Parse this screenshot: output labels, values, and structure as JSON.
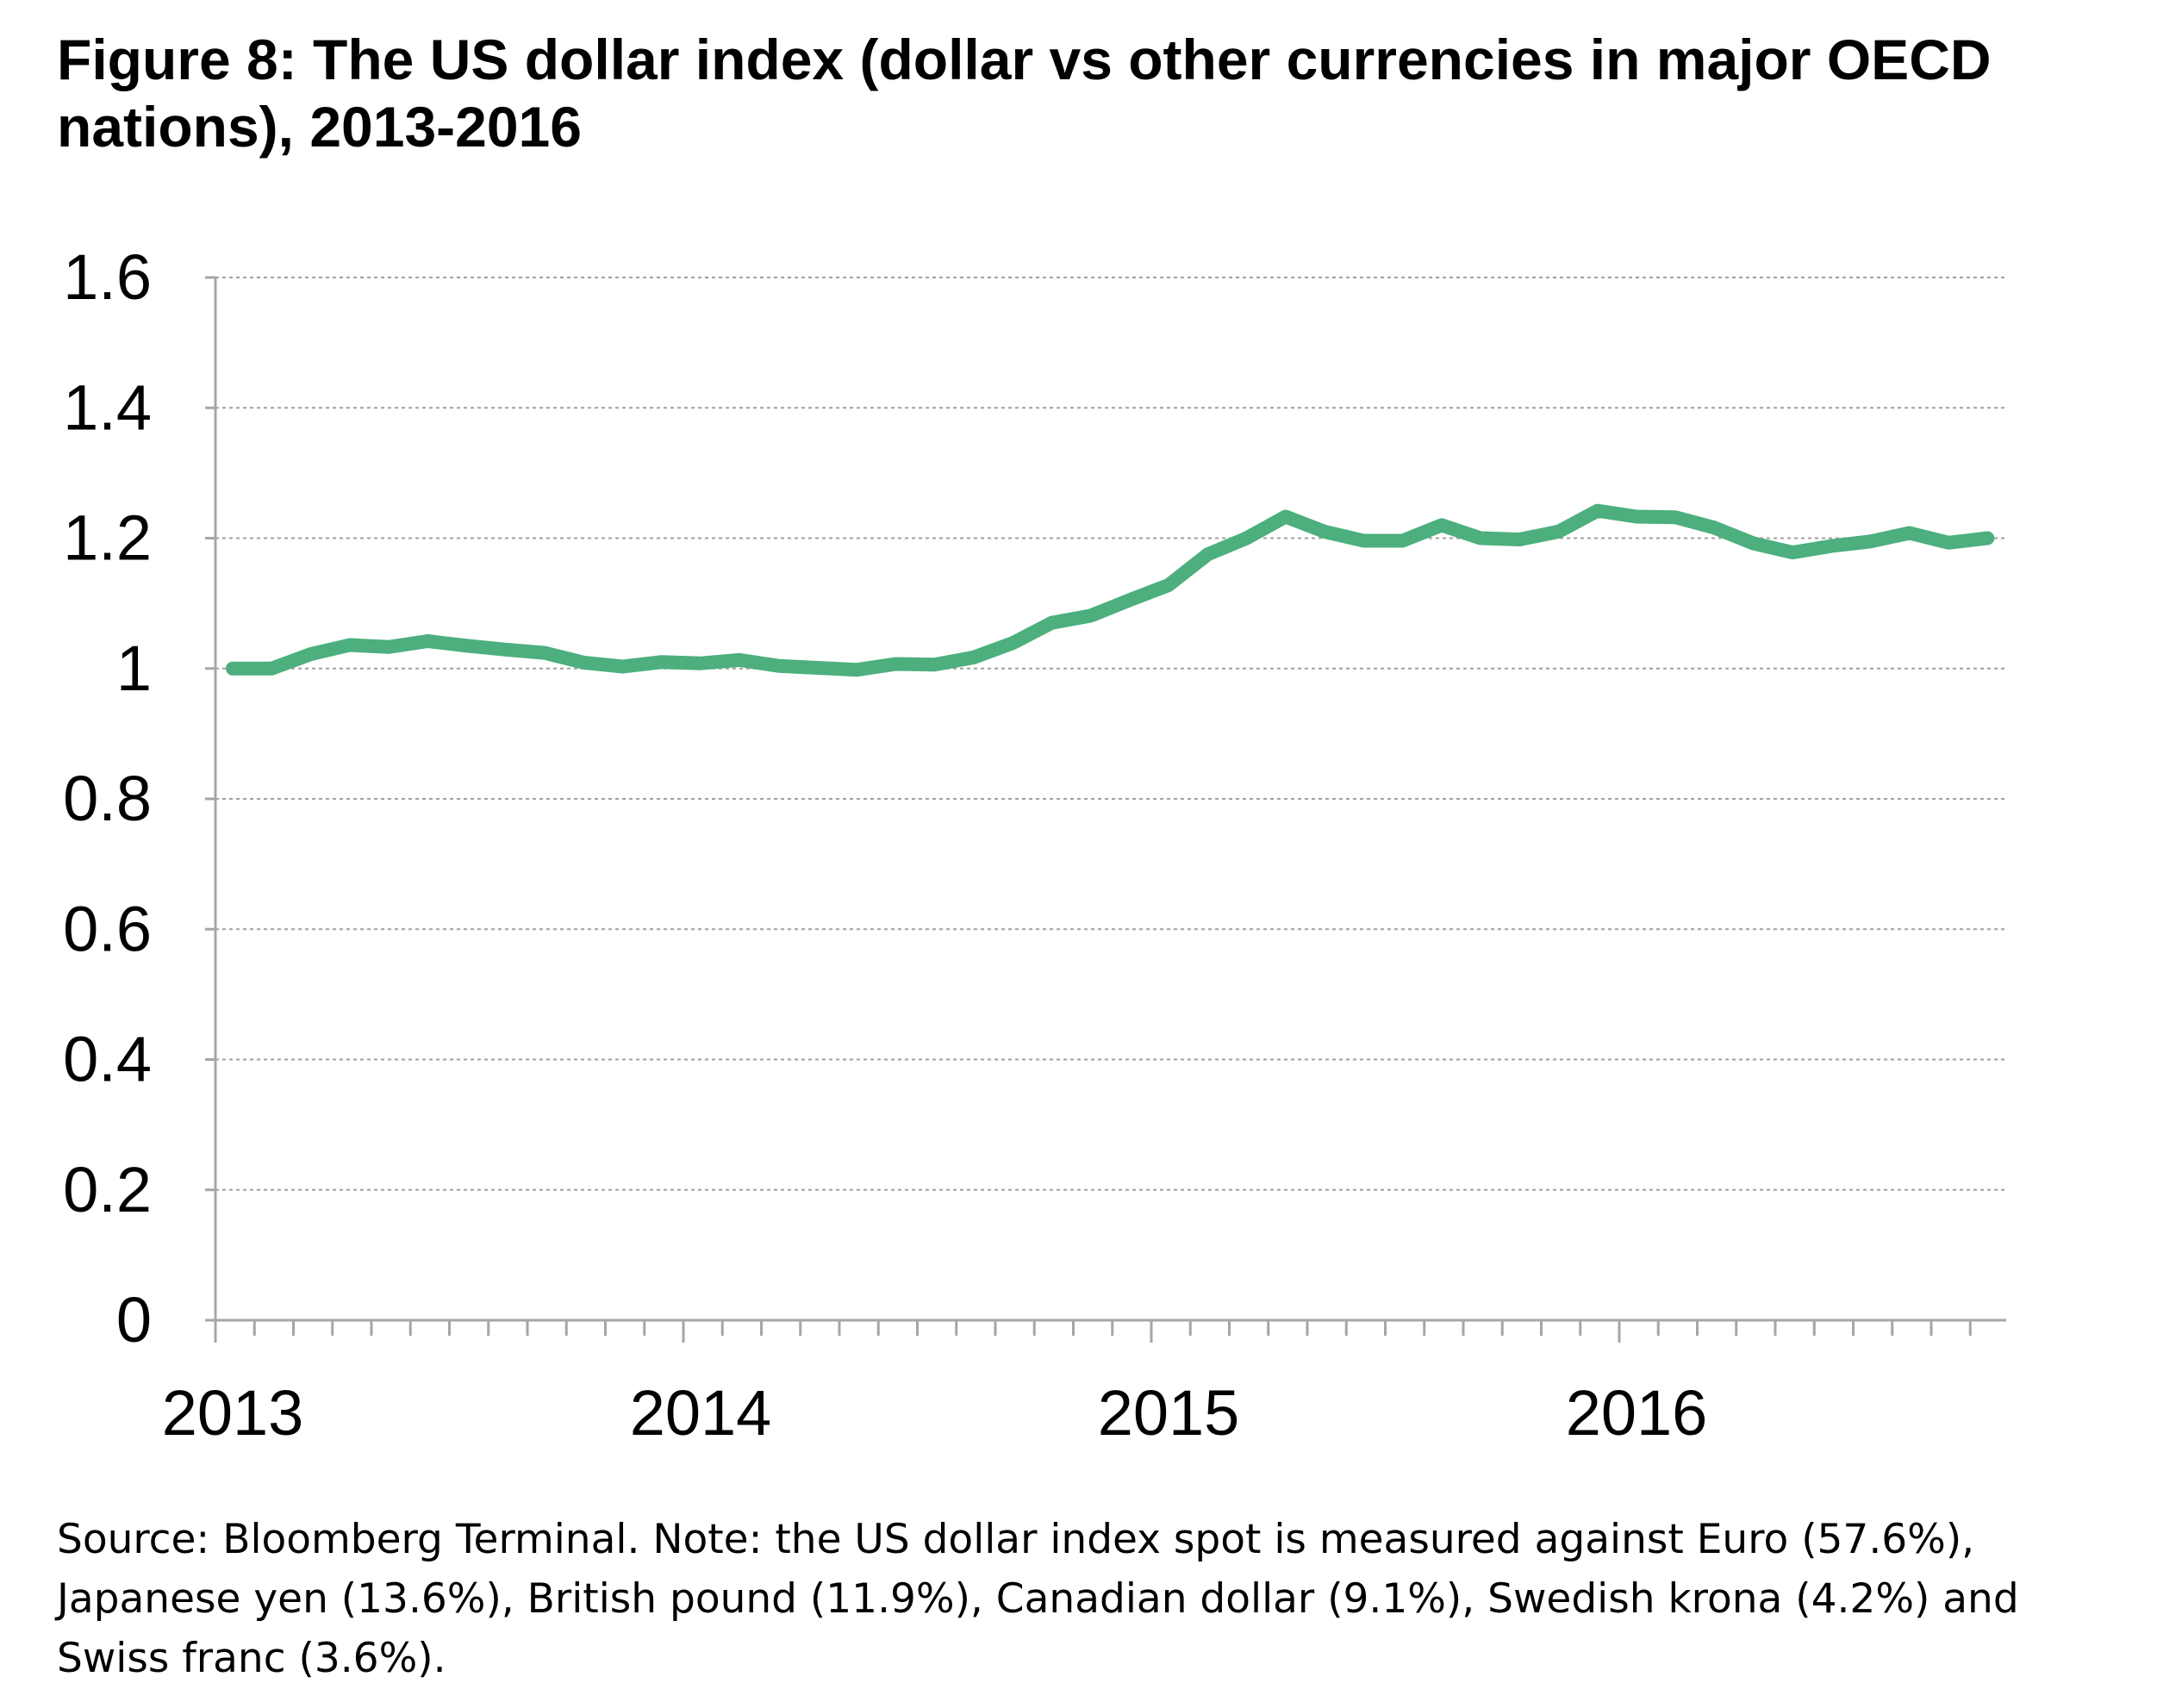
{
  "title": "Figure 8: The US dollar index (dollar vs other currencies in major OECD nations), 2013-2016",
  "source_note": "Source: Bloomberg Terminal. Note: the US dollar index spot is measured against Euro (57.6%), Japanese yen (13.6%), British pound (11.9%), Canadian dollar (9.1%), Swedish krona (4.2%) and Swiss franc (3.6%).",
  "chart_data": {
    "type": "line",
    "title": "Figure 8: The US dollar index (dollar vs other currencies in major OECD nations), 2013-2016",
    "xlabel": "",
    "ylabel": "",
    "x_tick_labels": [
      "2013",
      "2014",
      "2015",
      "2016"
    ],
    "y_tick_labels": [
      "0",
      "0.2",
      "0.4",
      "0.6",
      "0.8",
      "1",
      "1.2",
      "1.4",
      "1.6"
    ],
    "ylim": [
      0,
      1.6
    ],
    "xlim": [
      0,
      46
    ],
    "x_note": "x values are month indices starting January 2013 (0 = Jan 2013)",
    "grid": "horizontal dashed",
    "legend": "none",
    "colors": {
      "line": "#4caf7d",
      "grid": "#a0a0a0",
      "axis": "#a6a6a6"
    },
    "series": [
      {
        "x": [
          0,
          1,
          2,
          3,
          4,
          5,
          6,
          7,
          8,
          9,
          10,
          11,
          12,
          13,
          14,
          15,
          16,
          17,
          18,
          19,
          20,
          21,
          22,
          23,
          24,
          25,
          26,
          27,
          28,
          29,
          30,
          31,
          32,
          33,
          34,
          35,
          36,
          37,
          38,
          39,
          40,
          41,
          42,
          43,
          44,
          45
        ],
        "values": [
          1.0,
          1.0,
          1.022,
          1.036,
          1.033,
          1.042,
          1.035,
          1.029,
          1.024,
          1.009,
          1.003,
          1.01,
          1.008,
          1.013,
          1.004,
          1.001,
          0.998,
          1.007,
          1.006,
          1.017,
          1.039,
          1.07,
          1.081,
          1.105,
          1.128,
          1.175,
          1.2,
          1.233,
          1.21,
          1.196,
          1.196,
          1.22,
          1.2,
          1.198,
          1.21,
          1.242,
          1.233,
          1.232,
          1.216,
          1.192,
          1.178,
          1.188,
          1.195,
          1.208,
          1.193,
          1.2
        ]
      }
    ]
  }
}
